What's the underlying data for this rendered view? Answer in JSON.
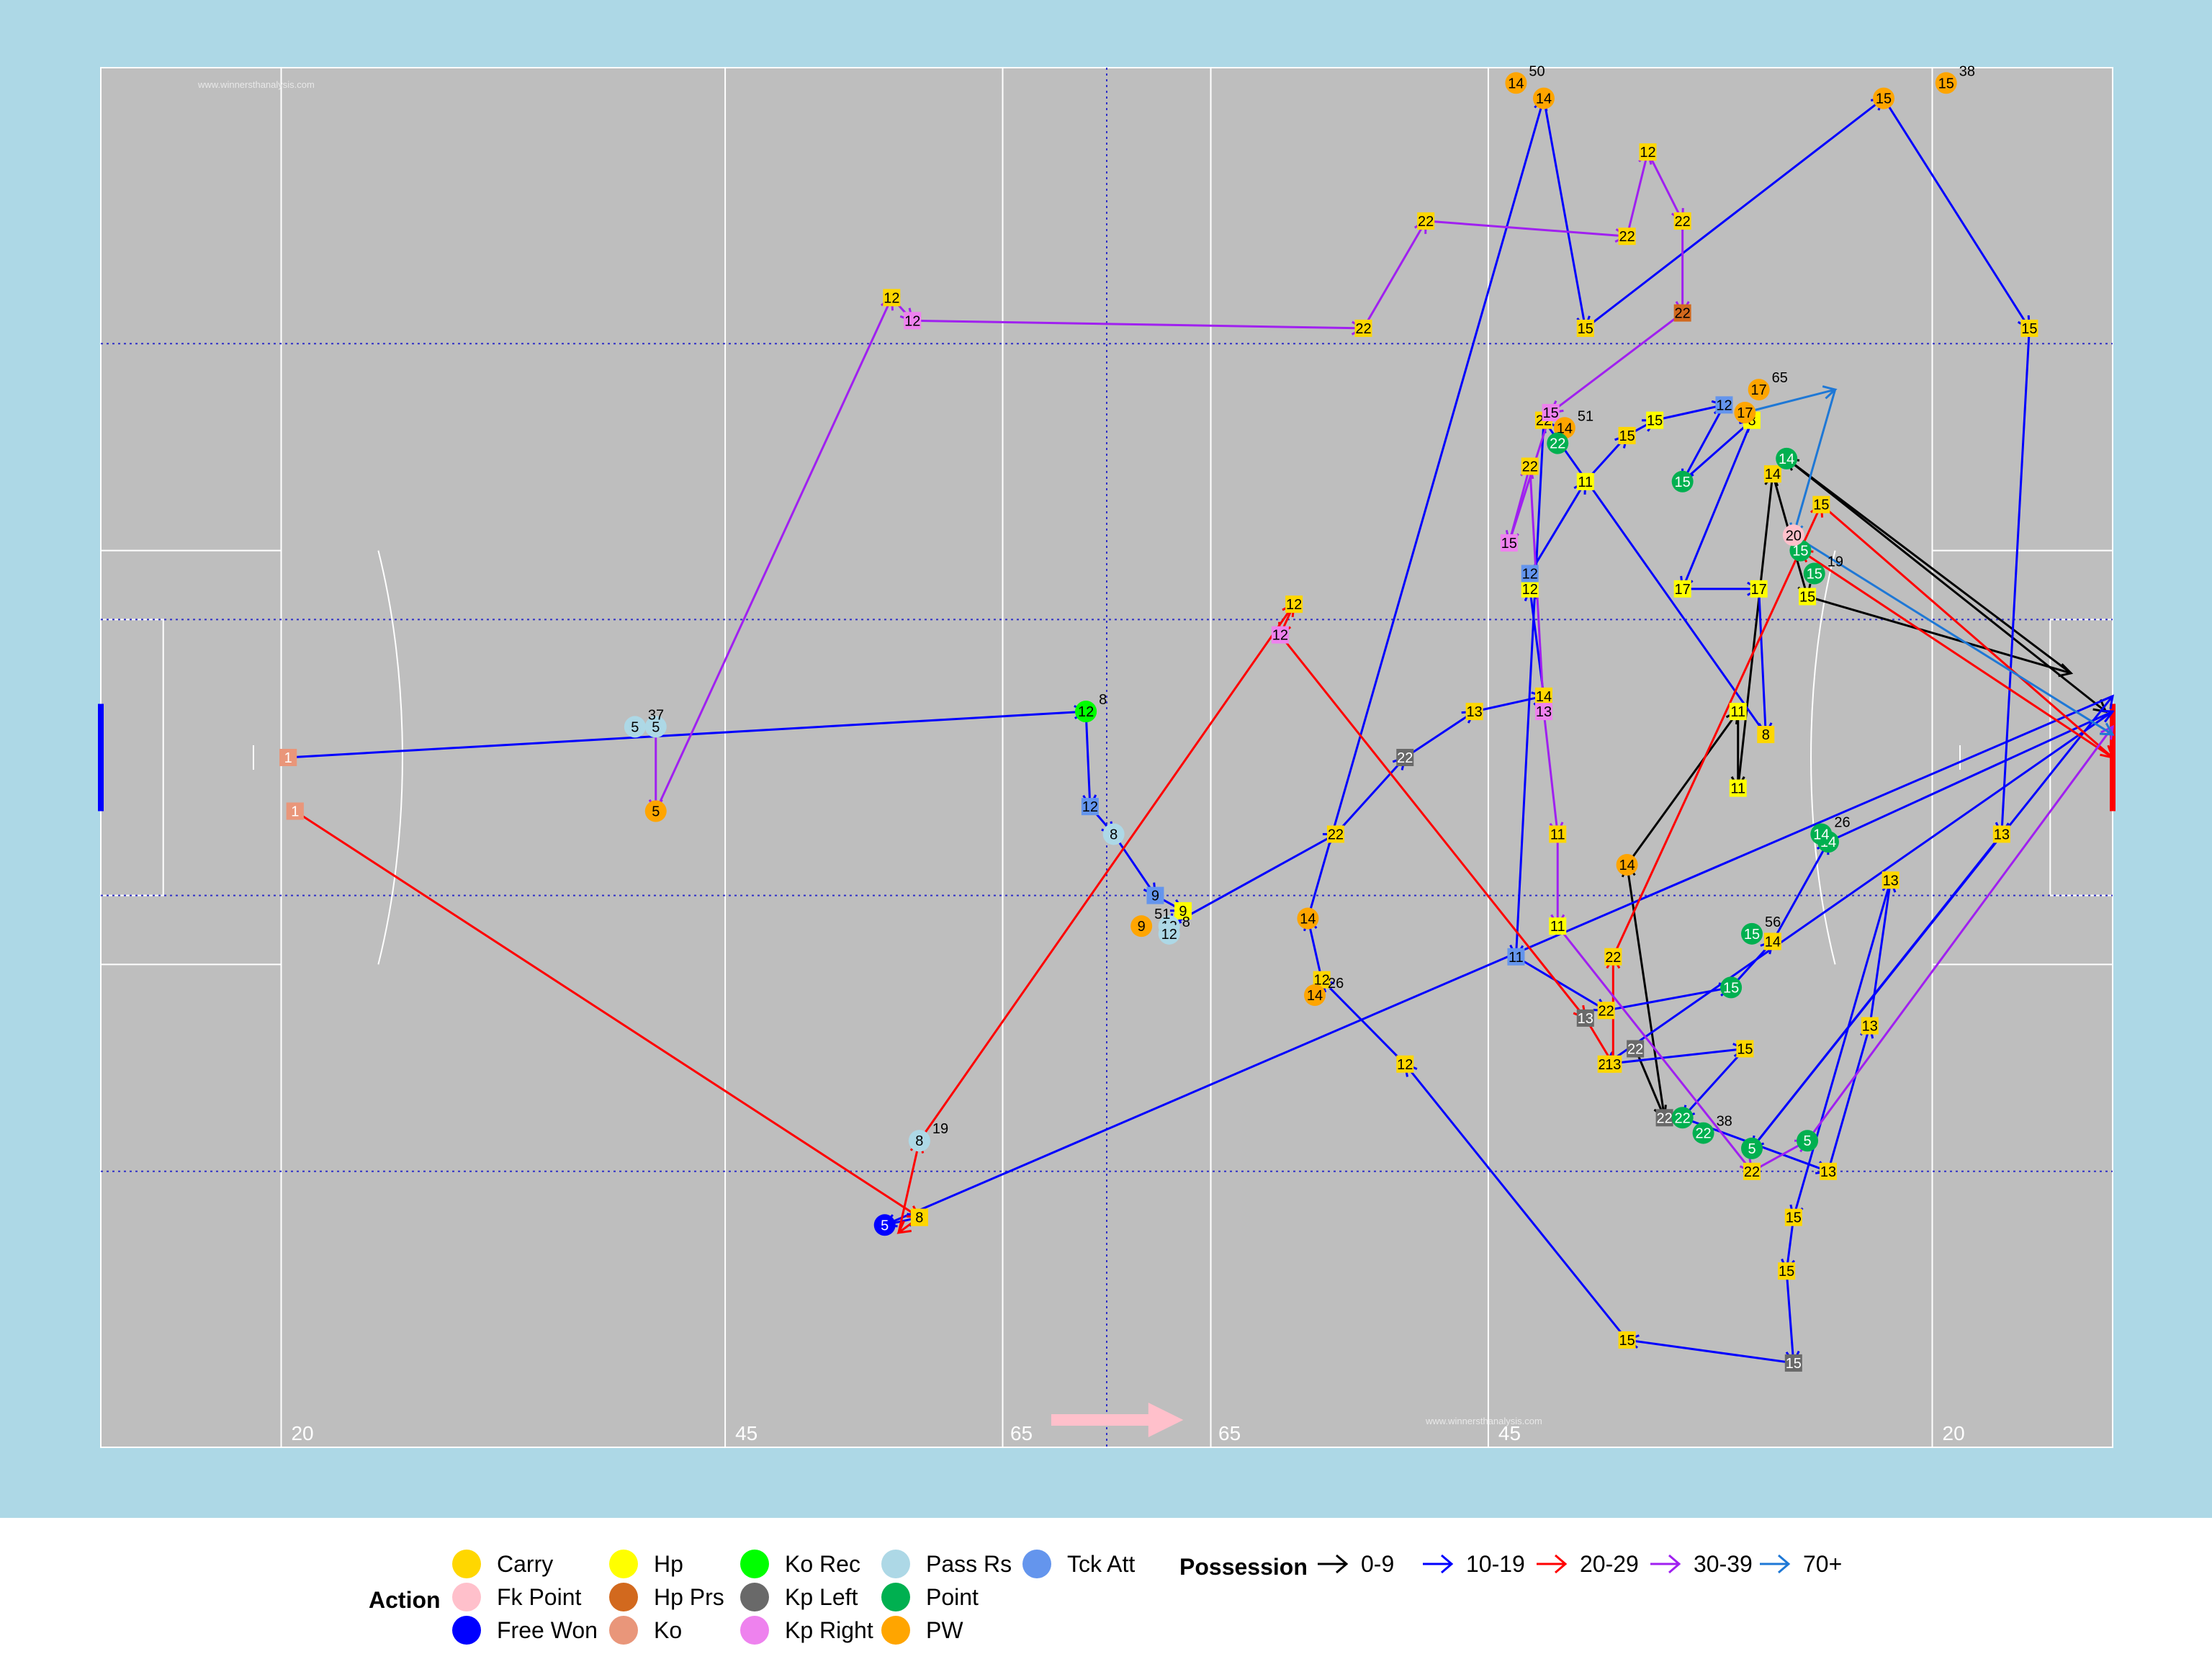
{
  "chart_data": {
    "type": "scatter",
    "title": "",
    "xlabel": "",
    "ylabel": "",
    "pitch": {
      "length_m": 145,
      "width_m": 90,
      "background": "#add8e6",
      "pitch_color": "#bebebe",
      "line_color": "#ffffff",
      "distance_labels": [
        "20",
        "45",
        "65",
        "65",
        "45",
        "20"
      ],
      "watermark": "www.winnersthanalysis.com",
      "direction_arrow_color": "#ffc0cb"
    },
    "action_colors": {
      "Carry": "#ffd700",
      "Fk Point": "#ffc0cb",
      "Free Won": "#0000ff",
      "Hp": "#ffff00",
      "Hp Prs": "#d2691e",
      "Ko": "#e9967a",
      "Ko Rec": "#00ff00",
      "Kp Left": "#696969",
      "Kp Right": "#ee82ee",
      "Pass Rs": "#add8e6",
      "Point": "#00b050",
      "PW": "#ffa500",
      "Tck Att": "#6495ed"
    },
    "possession_colors": {
      "0-9": "#000000",
      "10-19": "#0000ff",
      "20-29": "#ff0000",
      "30-39": "#a020f0",
      "70+": "#1e78d6"
    },
    "series": [
      {
        "pos": "0-9",
        "points": [
          [
            110.6,
            26.0,
            "Kp Left",
            "22"
          ],
          [
            112.7,
            21.5,
            "Kp Left",
            "22"
          ],
          [
            110.0,
            38.0,
            "PW",
            "14"
          ],
          [
            118.0,
            48.0,
            "Hp",
            "11"
          ],
          [
            118.0,
            43.0,
            "Hp",
            "11"
          ],
          [
            120.5,
            63.5,
            "Carry",
            "14"
          ],
          [
            123.0,
            55.5,
            "Hp",
            "15"
          ],
          [
            142.0,
            50.5,
            "Point",
            ""
          ],
          [
            121.5,
            64.5,
            "Point",
            "14"
          ],
          [
            144.5,
            48.0,
            "Point",
            ""
          ]
        ]
      },
      {
        "pos": "10-19",
        "points": [
          [
            13.5,
            45.0,
            "Ko",
            "1"
          ],
          [
            71.0,
            48.0,
            "Ko Rec",
            "12"
          ],
          [
            71.3,
            41.8,
            "Tck Att",
            "12"
          ],
          [
            73.0,
            40.0,
            "Pass Rs",
            "8"
          ],
          [
            76.0,
            36.0,
            "Tck Att",
            "9"
          ],
          [
            78.0,
            35.0,
            "Hp",
            "9"
          ],
          [
            77.0,
            34.0,
            "Pass Rs",
            "12"
          ],
          [
            89.0,
            40.0,
            "Carry",
            "22"
          ],
          [
            94.0,
            45.0,
            "Kp Left",
            "22"
          ],
          [
            99.0,
            48.0,
            "Carry",
            "13"
          ],
          [
            104.0,
            49.0,
            "Carry",
            "14"
          ],
          [
            103.0,
            56.0,
            "Hp",
            "12"
          ],
          [
            103.0,
            57.0,
            "Tck Att",
            "12"
          ],
          [
            107.0,
            63.0,
            "Hp",
            "11"
          ],
          [
            110.0,
            66.0,
            "Carry",
            "15"
          ],
          [
            112.0,
            67.0,
            "Hp",
            "15"
          ],
          [
            117.0,
            68.0,
            "Tck Att",
            "12"
          ],
          [
            114.0,
            63.0,
            "Point",
            "15"
          ],
          [
            119.0,
            67.0,
            "Hp",
            "8"
          ],
          [
            114.0,
            56.0,
            "Hp",
            "17"
          ],
          [
            119.5,
            56.0,
            "Hp",
            "17"
          ],
          [
            120.0,
            46.5,
            "Carry",
            "8"
          ],
          [
            104.0,
            67.0,
            "Carry",
            "22"
          ],
          [
            102.0,
            32.0,
            "Tck Att",
            "11"
          ],
          [
            108.5,
            28.5,
            "Carry",
            "22"
          ],
          [
            117.5,
            30.0,
            "Point",
            "15"
          ],
          [
            120.5,
            33.0,
            "Carry",
            "14"
          ],
          [
            124.5,
            39.5,
            "Point",
            "14"
          ],
          [
            145.0,
            48.0,
            "Point",
            ""
          ],
          [
            108.5,
            25.0,
            "Carry",
            "22"
          ],
          [
            118.5,
            26.0,
            "Carry",
            "15"
          ],
          [
            114.0,
            21.5,
            "Point",
            "22"
          ],
          [
            124.5,
            18.0,
            "Carry",
            "13"
          ],
          [
            127.5,
            27.5,
            "Carry",
            "13"
          ],
          [
            129.0,
            37.0,
            "Carry",
            "13"
          ],
          [
            122.0,
            15.0,
            "Carry",
            "15"
          ],
          [
            121.5,
            11.5,
            "Carry",
            "15"
          ],
          [
            122.0,
            5.5,
            "Kp Left",
            "15"
          ],
          [
            110.0,
            7.0,
            "Carry",
            "15"
          ],
          [
            94.0,
            25.0,
            "Carry",
            "12"
          ],
          [
            88.0,
            30.5,
            "Carry",
            "12"
          ],
          [
            87.0,
            34.5,
            "PW",
            "14"
          ],
          [
            104.0,
            88.0,
            "PW",
            "14"
          ],
          [
            107.0,
            73.0,
            "Carry",
            "15"
          ],
          [
            128.5,
            88.0,
            "PW",
            "15"
          ],
          [
            139.0,
            73.0,
            "Carry",
            "15"
          ],
          [
            137.0,
            40.0,
            "Carry",
            "13"
          ],
          [
            119.0,
            19.5,
            "Point",
            "5"
          ],
          [
            145.0,
            49.0,
            "Point",
            ""
          ],
          [
            56.5,
            14.5,
            "Free Won",
            "5"
          ],
          [
            59.0,
            15.0,
            "Carry",
            "8"
          ]
        ]
      },
      {
        "pos": "20-29",
        "points": [
          [
            14.0,
            41.5,
            "Ko",
            "1"
          ],
          [
            59.0,
            15.0,
            "Carry",
            "8"
          ],
          [
            57.5,
            14.0,
            "Hp Prs",
            ""
          ],
          [
            59.0,
            20.0,
            "Pass Rs",
            "8"
          ],
          [
            86.0,
            55.0,
            "Carry",
            "12"
          ],
          [
            85.0,
            53.0,
            "Kp Right",
            "12"
          ],
          [
            107.0,
            28.0,
            "Kp Left",
            "13"
          ],
          [
            109.0,
            25.0,
            "Carry",
            "13"
          ],
          [
            109.0,
            32.0,
            "Carry",
            "22"
          ],
          [
            124.0,
            61.5,
            "Carry",
            "15"
          ],
          [
            145.0,
            45.0,
            "Point",
            ""
          ],
          [
            122.5,
            58.5,
            "Point",
            "15"
          ]
        ]
      },
      {
        "pos": "30-39",
        "points": [
          [
            40.0,
            47.0,
            "Pass Rs",
            "5"
          ],
          [
            40.0,
            41.5,
            "PW",
            "5"
          ],
          [
            57.0,
            75.0,
            "Carry",
            "12"
          ],
          [
            58.5,
            73.5,
            "Kp Right",
            "12"
          ],
          [
            91.0,
            73.0,
            "Carry",
            "22"
          ],
          [
            95.5,
            80.0,
            "Carry",
            "22"
          ],
          [
            110.0,
            79.0,
            "Carry",
            "22"
          ],
          [
            111.5,
            84.5,
            "Carry",
            "12"
          ],
          [
            114.0,
            80.0,
            "Carry",
            "22"
          ],
          [
            114.0,
            74.0,
            "Hp Prs",
            "22"
          ],
          [
            104.5,
            67.5,
            "Kp Right",
            "15"
          ],
          [
            101.5,
            59.0,
            "Kp Right",
            "15"
          ],
          [
            103.0,
            64.0,
            "Carry",
            "22"
          ],
          [
            104.0,
            48.0,
            "Kp Right",
            "13"
          ],
          [
            105.0,
            40.0,
            "Carry",
            "11"
          ],
          [
            105.0,
            34.0,
            "Hp",
            "11"
          ],
          [
            119.0,
            18.0,
            "Carry",
            "22"
          ],
          [
            123.0,
            20.0,
            "Point",
            "5"
          ],
          [
            145.0,
            47.0,
            "Point",
            ""
          ]
        ]
      },
      {
        "pos": "70+",
        "points": [
          [
            118.5,
            67.5,
            "PW",
            "17"
          ],
          [
            125.0,
            69.0,
            "Point",
            ""
          ],
          [
            122.0,
            59.5,
            "Fk Point",
            "20"
          ],
          [
            145.0,
            46.5,
            "Point",
            ""
          ]
        ]
      }
    ],
    "markers": [
      {
        "x": 38.5,
        "y": 47.0,
        "action": "Pass Rs",
        "label": "5",
        "note": "37"
      },
      {
        "x": 71.0,
        "y": 48.0,
        "action": "Ko Rec",
        "label": "12",
        "note": "8"
      },
      {
        "x": 75.0,
        "y": 34.0,
        "action": "PW",
        "label": "9",
        "note": "51"
      },
      {
        "x": 77.0,
        "y": 33.5,
        "action": "Pass Rs",
        "label": "12",
        "note": "8"
      },
      {
        "x": 59.0,
        "y": 20.0,
        "action": "Pass Rs",
        "label": "8",
        "note": "19"
      },
      {
        "x": 102.0,
        "y": 89.0,
        "action": "PW",
        "label": "14",
        "note": "50"
      },
      {
        "x": 133.0,
        "y": 89.0,
        "action": "PW",
        "label": "15",
        "note": "38"
      },
      {
        "x": 119.5,
        "y": 69.0,
        "action": "PW",
        "label": "17",
        "note": "65"
      },
      {
        "x": 105.5,
        "y": 66.5,
        "action": "PW",
        "label": "14",
        "note": "51"
      },
      {
        "x": 105.0,
        "y": 65.5,
        "action": "Point",
        "label": "22",
        "note": ""
      },
      {
        "x": 123.5,
        "y": 57.0,
        "action": "Point",
        "label": "15",
        "note": "19"
      },
      {
        "x": 124.0,
        "y": 40.0,
        "action": "Point",
        "label": "14",
        "note": "26"
      },
      {
        "x": 119.0,
        "y": 33.5,
        "action": "Point",
        "label": "15",
        "note": "56"
      },
      {
        "x": 115.5,
        "y": 20.5,
        "action": "Point",
        "label": "22",
        "note": "38"
      },
      {
        "x": 87.5,
        "y": 29.5,
        "action": "PW",
        "label": "14",
        "note": "26"
      },
      {
        "x": 13.5,
        "y": 45.0,
        "action": "Ko",
        "label": "1",
        "note": ""
      },
      {
        "x": 14.0,
        "y": 41.5,
        "action": "Ko",
        "label": "1",
        "note": ""
      }
    ]
  },
  "legend": {
    "action_title": "Action",
    "possession_title": "Possession",
    "actions": [
      {
        "label": "Carry",
        "color": "#ffd700"
      },
      {
        "label": "Fk Point",
        "color": "#ffc0cb"
      },
      {
        "label": "Free Won",
        "color": "#0000ff"
      },
      {
        "label": "Hp",
        "color": "#ffff00"
      },
      {
        "label": "Hp Prs",
        "color": "#d2691e"
      },
      {
        "label": "Ko",
        "color": "#e9967a"
      },
      {
        "label": "Ko Rec",
        "color": "#00ff00"
      },
      {
        "label": "Kp Left",
        "color": "#696969"
      },
      {
        "label": "Kp Right",
        "color": "#ee82ee"
      },
      {
        "label": "Pass Rs",
        "color": "#add8e6"
      },
      {
        "label": "Point",
        "color": "#00b050"
      },
      {
        "label": "PW",
        "color": "#ffa500"
      },
      {
        "label": "Tck Att",
        "color": "#6495ed"
      }
    ],
    "possession": [
      {
        "label": "0-9",
        "color": "#000000"
      },
      {
        "label": "10-19",
        "color": "#0000ff"
      },
      {
        "label": "20-29",
        "color": "#ff0000"
      },
      {
        "label": "30-39",
        "color": "#a020f0"
      },
      {
        "label": "70+",
        "color": "#1e78d6"
      }
    ]
  }
}
